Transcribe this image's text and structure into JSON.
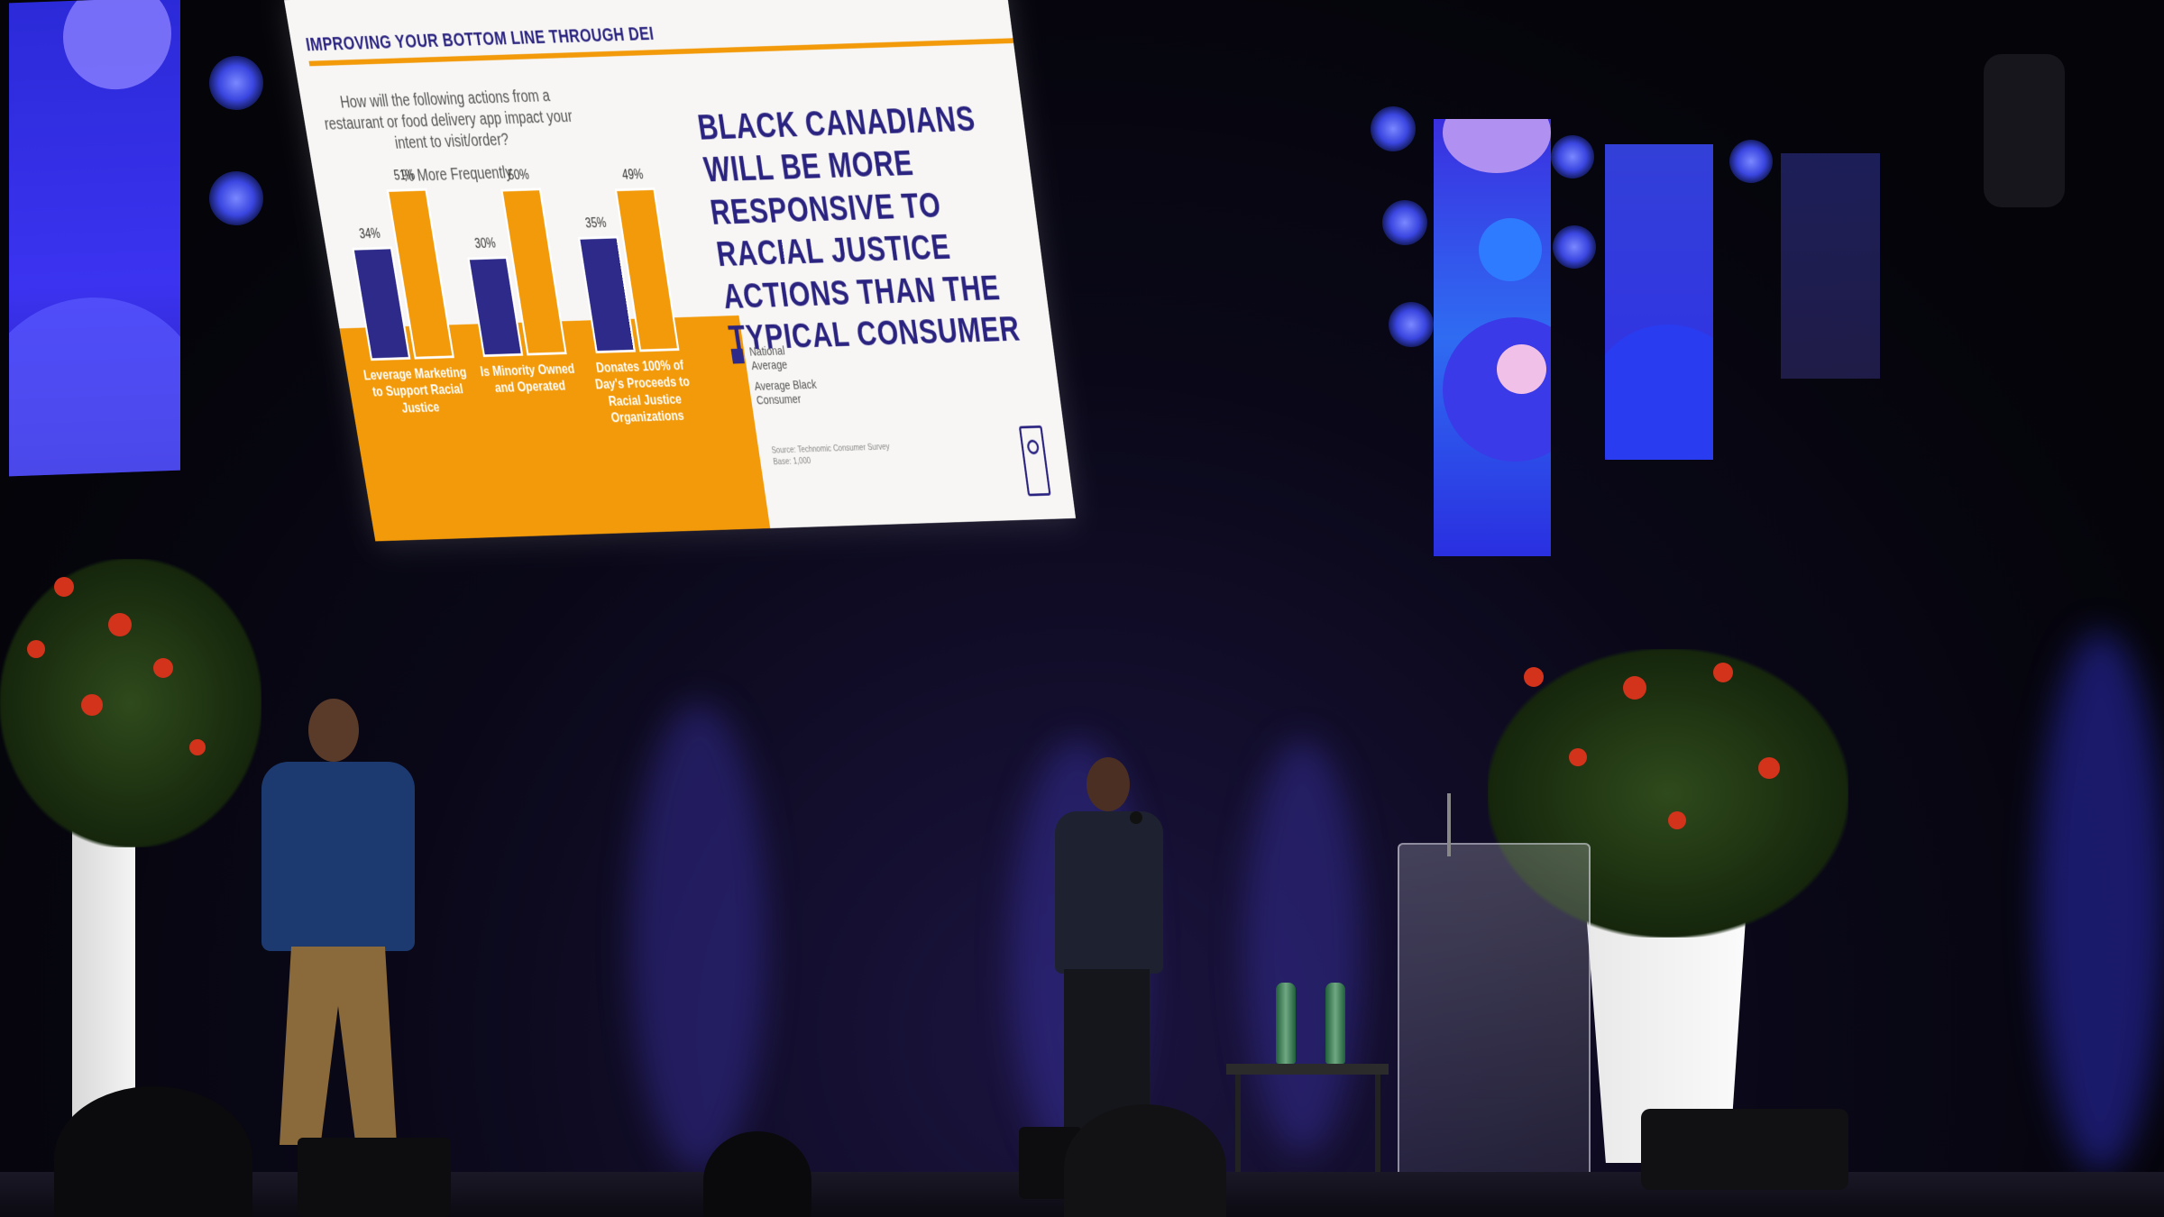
{
  "slide": {
    "title": "IMPROVING YOUR BOTTOM LINE THROUGH DEI",
    "question": "How will the following actions from a restaurant or food delivery app impact your intent to visit/order?",
    "subtitle": "% More Frequently",
    "headline": "BLACK CANADIANS WILL BE MORE RESPONSIVE TO RACIAL JUSTICE ACTIONS THAN THE TYPICAL CONSUMER",
    "source_line1": "Source: Technomic Consumer Survey",
    "source_line2": "Base: 1,000"
  },
  "chart_data": {
    "type": "bar",
    "categories": [
      "Leverage Marketing to Support Racial Justice",
      "Is Minority Owned and Operated",
      "Donates 100% of Day's Proceeds to Racial Justice Organizations"
    ],
    "series": [
      {
        "name": "National Average",
        "values": [
          34,
          30,
          35
        ],
        "labels": [
          "34%",
          "30%",
          "35%"
        ]
      },
      {
        "name": "Average Black Consumer",
        "values": [
          51,
          50,
          49
        ],
        "labels": [
          "51%",
          "50%",
          "49%"
        ]
      }
    ],
    "ylim": [
      0,
      60
    ],
    "grid": false,
    "legend": "right",
    "colors": {
      "national": "#2e2a8a",
      "black_consumer": "#f29a0a"
    }
  },
  "legend": {
    "national": "National Average",
    "black_consumer": "Average Black Consumer"
  },
  "colors": {
    "slide_bg": "#f7f6f4",
    "accent": "#f29a0a",
    "navy": "#2a2380",
    "led_blue": "#3b33f0",
    "flowers": "#d2331a"
  }
}
